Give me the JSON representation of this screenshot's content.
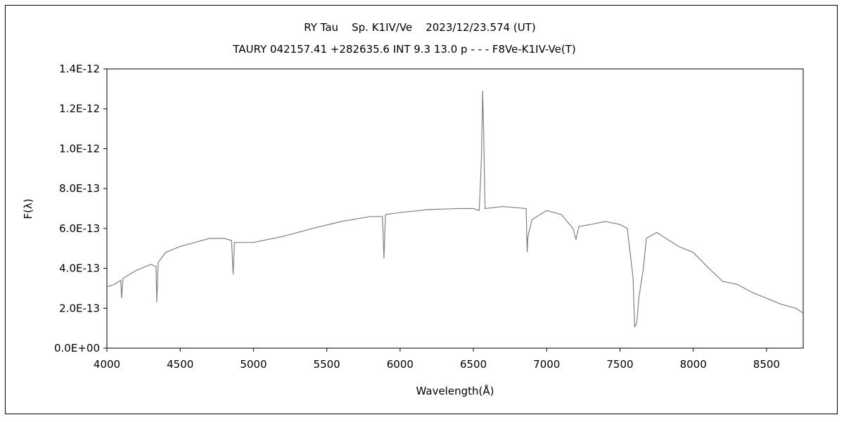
{
  "chart_data": {
    "type": "line",
    "title": "RY Tau    Sp. K1IV/Ve    2023/12/23.574 (UT)",
    "subtitle": "TAURY 042157.41 +282635.6 INT 9.3 13.0 p - - - F8Ve-K1IV-Ve(T)",
    "xlabel": "Wavelength(Å)",
    "ylabel": "F(λ)",
    "xlim": [
      4000,
      8750
    ],
    "ylim": [
      0,
      1.4e-12
    ],
    "xticks": [
      "4000",
      "4500",
      "5000",
      "5500",
      "6000",
      "6500",
      "7000",
      "7500",
      "8000",
      "8500"
    ],
    "xtick_values": [
      4000,
      4500,
      5000,
      5500,
      6000,
      6500,
      7000,
      7500,
      8000,
      8500
    ],
    "yticks": [
      "0.0E+00",
      "2.0E-13",
      "4.0E-13",
      "6.0E-13",
      "8.0E-13",
      "1.0E-12",
      "1.2E-12",
      "1.4E-12"
    ],
    "ytick_values": [
      0,
      2e-13,
      4e-13,
      6e-13,
      8e-13,
      1e-12,
      1.2e-12,
      1.4e-12
    ],
    "grid": false,
    "series": [
      {
        "name": "RY Tau",
        "color": "#808080",
        "x": [
          4000,
          4050,
          4095,
          4100,
          4110,
          4200,
          4300,
          4335,
          4340,
          4350,
          4400,
          4500,
          4600,
          4700,
          4800,
          4850,
          4861,
          4870,
          4900,
          5000,
          5200,
          5400,
          5600,
          5800,
          5880,
          5890,
          5900,
          6000,
          6200,
          6400,
          6500,
          6540,
          6555,
          6563,
          6570,
          6580,
          6700,
          6860,
          6867,
          6872,
          6900,
          7000,
          7100,
          7180,
          7200,
          7220,
          7300,
          7400,
          7500,
          7550,
          7590,
          7600,
          7615,
          7630,
          7660,
          7680,
          7750,
          7900,
          8000,
          8100,
          8200,
          8300,
          8400,
          8500,
          8600,
          8700,
          8750
        ],
        "y": [
          3.07e-13,
          3.2e-13,
          3.4e-13,
          2.5e-13,
          3.5e-13,
          3.9e-13,
          4.2e-13,
          4.1e-13,
          2.3e-13,
          4.3e-13,
          4.8e-13,
          5.1e-13,
          5.3e-13,
          5.5e-13,
          5.5e-13,
          5.4e-13,
          3.7e-13,
          5.3e-13,
          5.3e-13,
          5.3e-13,
          5.6e-13,
          6e-13,
          6.35e-13,
          6.6e-13,
          6.6e-13,
          4.5e-13,
          6.7e-13,
          6.8e-13,
          6.95e-13,
          7e-13,
          7e-13,
          6.9e-13,
          9.5e-13,
          1.29e-12,
          1.1e-12,
          7e-13,
          7.1e-13,
          7e-13,
          4.8e-13,
          5.6e-13,
          6.45e-13,
          6.9e-13,
          6.7e-13,
          6e-13,
          5.45e-13,
          6.1e-13,
          6.2e-13,
          6.35e-13,
          6.2e-13,
          6e-13,
          3.5e-13,
          1.05e-13,
          1.3e-13,
          2.6e-13,
          4e-13,
          5.5e-13,
          5.8e-13,
          5.1e-13,
          4.8e-13,
          4.05e-13,
          3.35e-13,
          3.2e-13,
          2.8e-13,
          2.5e-13,
          2.2e-13,
          2e-13,
          1.75e-13
        ]
      }
    ]
  }
}
